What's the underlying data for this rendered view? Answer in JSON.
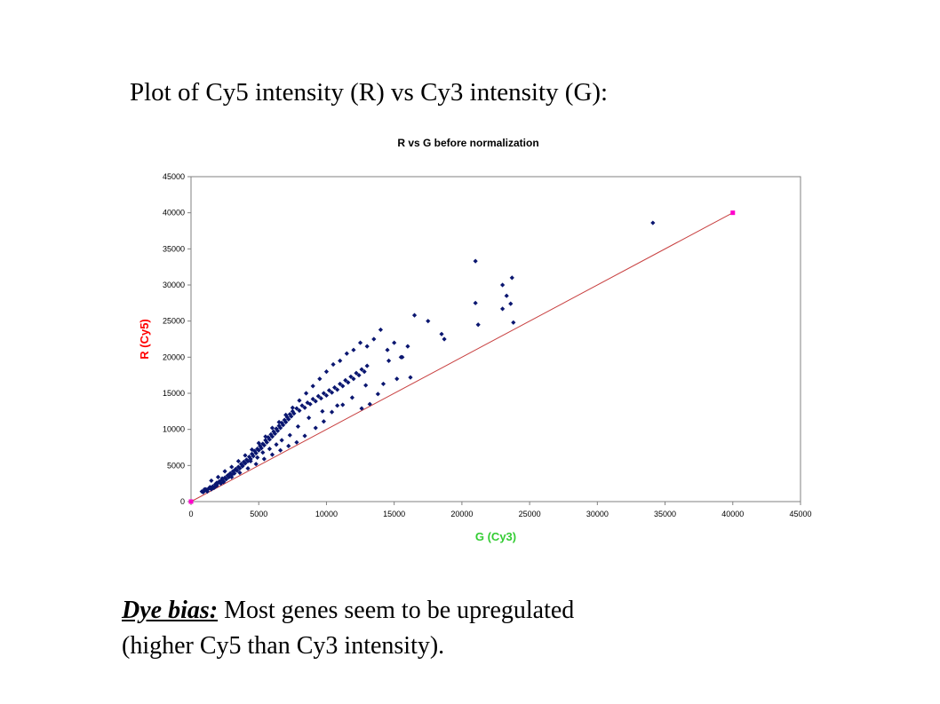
{
  "slide": {
    "heading": "Plot of Cy5 intensity (R) vs Cy3 intensity (G):",
    "caption_term": "Dye bias:",
    "caption_line1_rest": " Most genes seem to be upregulated",
    "caption_line2": "(higher Cy5 than Cy3 intensity)."
  },
  "chart_data": {
    "type": "scatter",
    "title": "R vs G before normalization",
    "xlabel": "G (Cy3)",
    "ylabel": "R (Cy5)",
    "xlim": [
      0,
      45000
    ],
    "ylim": [
      0,
      45000
    ],
    "xticks": [
      0,
      5000,
      10000,
      15000,
      20000,
      25000,
      30000,
      35000,
      40000,
      45000
    ],
    "yticks": [
      0,
      5000,
      10000,
      15000,
      20000,
      25000,
      30000,
      35000,
      40000,
      45000
    ],
    "grid": false,
    "legend": "none",
    "colors": {
      "points": "#0a1670",
      "line": "#c84040",
      "endpoints": "#ff00cc",
      "xlabel": "#33cc33",
      "ylabel": "#ff0000"
    },
    "reference_line": {
      "x": [
        0,
        40000
      ],
      "y": [
        0,
        40000
      ]
    },
    "series": [
      {
        "marker": "diamond",
        "points": [
          [
            800,
            1400
          ],
          [
            900,
            1300
          ],
          [
            1000,
            1500
          ],
          [
            1100,
            1700
          ],
          [
            1200,
            1400
          ],
          [
            1300,
            1800
          ],
          [
            1400,
            2000
          ],
          [
            1500,
            1700
          ],
          [
            1600,
            2100
          ],
          [
            1700,
            1900
          ],
          [
            1800,
            2400
          ],
          [
            1900,
            2200
          ],
          [
            2000,
            2600
          ],
          [
            2100,
            2800
          ],
          [
            2200,
            2500
          ],
          [
            2300,
            3000
          ],
          [
            2400,
            2700
          ],
          [
            2500,
            3300
          ],
          [
            2600,
            3100
          ],
          [
            2700,
            3600
          ],
          [
            2800,
            3400
          ],
          [
            2900,
            3900
          ],
          [
            3000,
            3700
          ],
          [
            3100,
            4200
          ],
          [
            3200,
            3900
          ],
          [
            3300,
            4500
          ],
          [
            3400,
            4300
          ],
          [
            3500,
            4800
          ],
          [
            3600,
            4600
          ],
          [
            3700,
            5200
          ],
          [
            3800,
            4900
          ],
          [
            3900,
            5500
          ],
          [
            4000,
            5300
          ],
          [
            4100,
            5800
          ],
          [
            4200,
            5600
          ],
          [
            4300,
            6200
          ],
          [
            4400,
            5900
          ],
          [
            4500,
            6600
          ],
          [
            4600,
            6300
          ],
          [
            4700,
            7000
          ],
          [
            4800,
            6700
          ],
          [
            4900,
            7300
          ],
          [
            5000,
            7100
          ],
          [
            5100,
            7700
          ],
          [
            5200,
            7400
          ],
          [
            5300,
            8000
          ],
          [
            5400,
            7800
          ],
          [
            5500,
            8500
          ],
          [
            5600,
            8200
          ],
          [
            5700,
            8900
          ],
          [
            5800,
            8600
          ],
          [
            5900,
            9300
          ],
          [
            6000,
            9000
          ],
          [
            6100,
            9700
          ],
          [
            6200,
            9400
          ],
          [
            6300,
            10100
          ],
          [
            6400,
            9800
          ],
          [
            6500,
            10500
          ],
          [
            6600,
            10200
          ],
          [
            6700,
            10900
          ],
          [
            6800,
            10600
          ],
          [
            6900,
            11300
          ],
          [
            7000,
            11000
          ],
          [
            7100,
            11700
          ],
          [
            7200,
            11400
          ],
          [
            7300,
            12100
          ],
          [
            7400,
            11800
          ],
          [
            7500,
            12500
          ],
          [
            7600,
            12200
          ],
          [
            7800,
            12900
          ],
          [
            8000,
            12600
          ],
          [
            8200,
            13300
          ],
          [
            8400,
            13000
          ],
          [
            8600,
            13700
          ],
          [
            8800,
            13500
          ],
          [
            9000,
            14200
          ],
          [
            9200,
            13900
          ],
          [
            9400,
            14600
          ],
          [
            9600,
            14300
          ],
          [
            9800,
            15000
          ],
          [
            10000,
            14700
          ],
          [
            10200,
            15400
          ],
          [
            10400,
            15100
          ],
          [
            10600,
            15800
          ],
          [
            10800,
            15500
          ],
          [
            11000,
            16300
          ],
          [
            11200,
            16000
          ],
          [
            11400,
            16800
          ],
          [
            11600,
            16500
          ],
          [
            11800,
            17300
          ],
          [
            12000,
            17000
          ],
          [
            12200,
            17800
          ],
          [
            12400,
            17500
          ],
          [
            12600,
            18300
          ],
          [
            12800,
            18000
          ],
          [
            13000,
            18800
          ],
          [
            1500,
            2900
          ],
          [
            2000,
            3400
          ],
          [
            2500,
            4200
          ],
          [
            3000,
            4800
          ],
          [
            3500,
            5600
          ],
          [
            4000,
            6400
          ],
          [
            4500,
            7200
          ],
          [
            5000,
            8100
          ],
          [
            5500,
            9000
          ],
          [
            6000,
            10200
          ],
          [
            6500,
            11000
          ],
          [
            7000,
            12000
          ],
          [
            7500,
            13000
          ],
          [
            8000,
            14000
          ],
          [
            8500,
            15000
          ],
          [
            9000,
            16000
          ],
          [
            9500,
            17000
          ],
          [
            10000,
            18000
          ],
          [
            10500,
            19000
          ],
          [
            11000,
            19500
          ],
          [
            11500,
            20500
          ],
          [
            12000,
            21000
          ],
          [
            12500,
            22000
          ],
          [
            13000,
            21500
          ],
          [
            13500,
            22500
          ],
          [
            14000,
            23800
          ],
          [
            14500,
            21000
          ],
          [
            15000,
            22000
          ],
          [
            15500,
            20000
          ],
          [
            16000,
            21500
          ],
          [
            16500,
            25800
          ],
          [
            17500,
            25000
          ],
          [
            18500,
            23200
          ],
          [
            18700,
            22500
          ],
          [
            21000,
            33300
          ],
          [
            21000,
            27500
          ],
          [
            21200,
            24500
          ],
          [
            23000,
            30000
          ],
          [
            23300,
            28500
          ],
          [
            23000,
            26700
          ],
          [
            23600,
            27400
          ],
          [
            23700,
            31000
          ],
          [
            23800,
            24800
          ],
          [
            34100,
            38600
          ],
          [
            13200,
            13500
          ],
          [
            12600,
            12900
          ],
          [
            11200,
            13400
          ],
          [
            10400,
            12400
          ],
          [
            9800,
            11100
          ],
          [
            9200,
            10200
          ],
          [
            8400,
            9100
          ],
          [
            7800,
            8200
          ],
          [
            7200,
            7700
          ],
          [
            6600,
            7100
          ],
          [
            6000,
            6500
          ],
          [
            5400,
            5900
          ],
          [
            4800,
            5200
          ],
          [
            4200,
            4600
          ],
          [
            3600,
            4000
          ],
          [
            3000,
            3400
          ],
          [
            2400,
            2800
          ],
          [
            1800,
            2100
          ],
          [
            14200,
            16300
          ],
          [
            15200,
            17000
          ],
          [
            16200,
            17200
          ],
          [
            13800,
            14900
          ],
          [
            14600,
            19500
          ],
          [
            15600,
            20000
          ],
          [
            12900,
            16100
          ],
          [
            11900,
            14400
          ],
          [
            10800,
            13300
          ],
          [
            9700,
            12500
          ],
          [
            8700,
            11600
          ],
          [
            7900,
            10400
          ],
          [
            7300,
            9200
          ],
          [
            6700,
            8500
          ],
          [
            6300,
            7900
          ],
          [
            5800,
            7300
          ],
          [
            5300,
            6800
          ],
          [
            4900,
            6100
          ],
          [
            4400,
            5600
          ],
          [
            3800,
            5000
          ],
          [
            3300,
            4400
          ],
          [
            2800,
            3700
          ],
          [
            2300,
            3200
          ],
          [
            1900,
            2600
          ],
          [
            1400,
            1900
          ],
          [
            1000,
            1700
          ]
        ]
      }
    ]
  }
}
